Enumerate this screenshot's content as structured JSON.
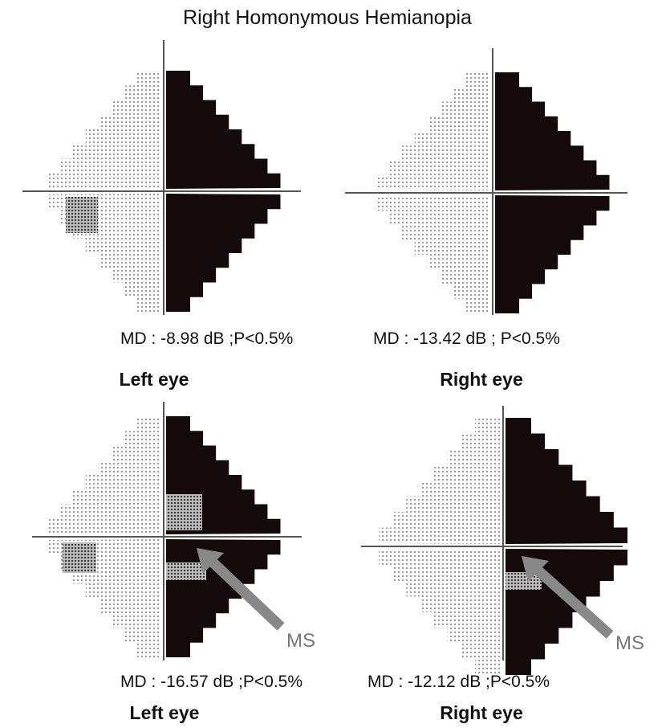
{
  "title": "Right Homonymous  Hemianopia",
  "panels": [
    {
      "md": "MD : -8.98 dB  ;P<0.5%",
      "eye": "Left eye"
    },
    {
      "md": "MD : -13.42 dB ; P<0.5%",
      "eye": "Right eye"
    },
    {
      "md": "MD : -16.57 dB  ;P<0.5%",
      "eye": "Left eye",
      "annotation": "MS"
    },
    {
      "md": "MD : -12.12 dB  ;P<0.5%",
      "eye": "Right eye",
      "annotation": "MS"
    }
  ]
}
